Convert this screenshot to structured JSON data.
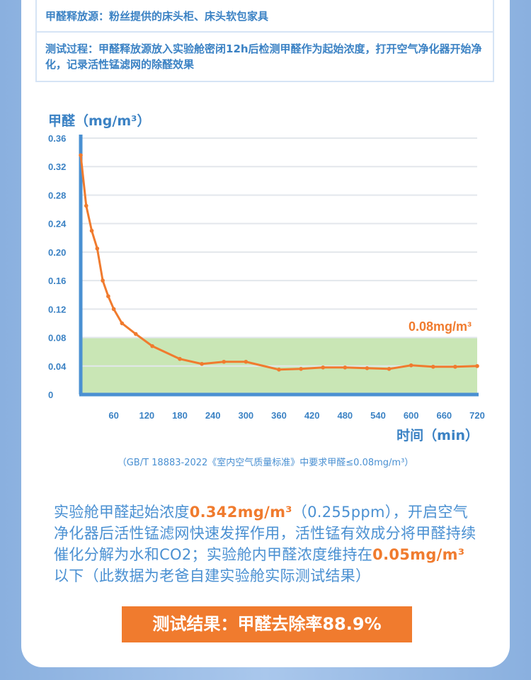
{
  "info": {
    "source": "甲醛释放源：粉丝提供的床头柜、床头软包家具",
    "process": "测试过程：甲醛释放源放入实验舱密闭12h后检测甲醛作为起始浓度，打开空气净化器开始净化，记录活性锰滤网的除醛效果"
  },
  "chart_data": {
    "type": "line",
    "ylabel": "甲醛（mg/m³）",
    "xlabel": "时间（min）",
    "ylim": [
      0,
      0.36
    ],
    "xlim": [
      0,
      720
    ],
    "yticks": [
      "0",
      "0.04",
      "0.08",
      "0.12",
      "0.16",
      "0.20",
      "0.24",
      "0.28",
      "0.32",
      "0.36"
    ],
    "xticks": [
      "60",
      "120",
      "180",
      "240",
      "300",
      "360",
      "420",
      "480",
      "540",
      "600",
      "660",
      "720"
    ],
    "grid": true,
    "series": [
      {
        "x": [
          0,
          10,
          20,
          30,
          40,
          50,
          60,
          75,
          100,
          130,
          180,
          220,
          260,
          300,
          360,
          400,
          440,
          480,
          520,
          560,
          600,
          640,
          680,
          720
        ],
        "values": [
          0.336,
          0.265,
          0.23,
          0.205,
          0.16,
          0.138,
          0.12,
          0.1,
          0.085,
          0.068,
          0.05,
          0.043,
          0.046,
          0.046,
          0.035,
          0.036,
          0.038,
          0.038,
          0.037,
          0.036,
          0.041,
          0.039,
          0.039,
          0.04
        ]
      }
    ],
    "band": {
      "y": 0.08,
      "label": "0.08mg/m³",
      "color": "#c9e6b5"
    },
    "line_color": "#f07b2e",
    "axis_color": "#4a90d2"
  },
  "note": "（GB/T 18883-2022《室内空气质量标准》中要求甲醛≤0.08mg/m³）",
  "summary": {
    "p1": "实验舱甲醛起始浓度",
    "v1": "0.342mg/m³",
    "p2": "（0.255ppm），开启空气净化器后活性锰滤网快速发挥作用，活性锰有效成分将甲醛持续催化分解为水和CO2；实验舱内甲醛浓度维持在",
    "v2": "0.05mg/m³",
    "p3": "以下（此数据为老爸自建实验舱实际测试结果）"
  },
  "result": "测试结果：甲醛去除率88.9%"
}
